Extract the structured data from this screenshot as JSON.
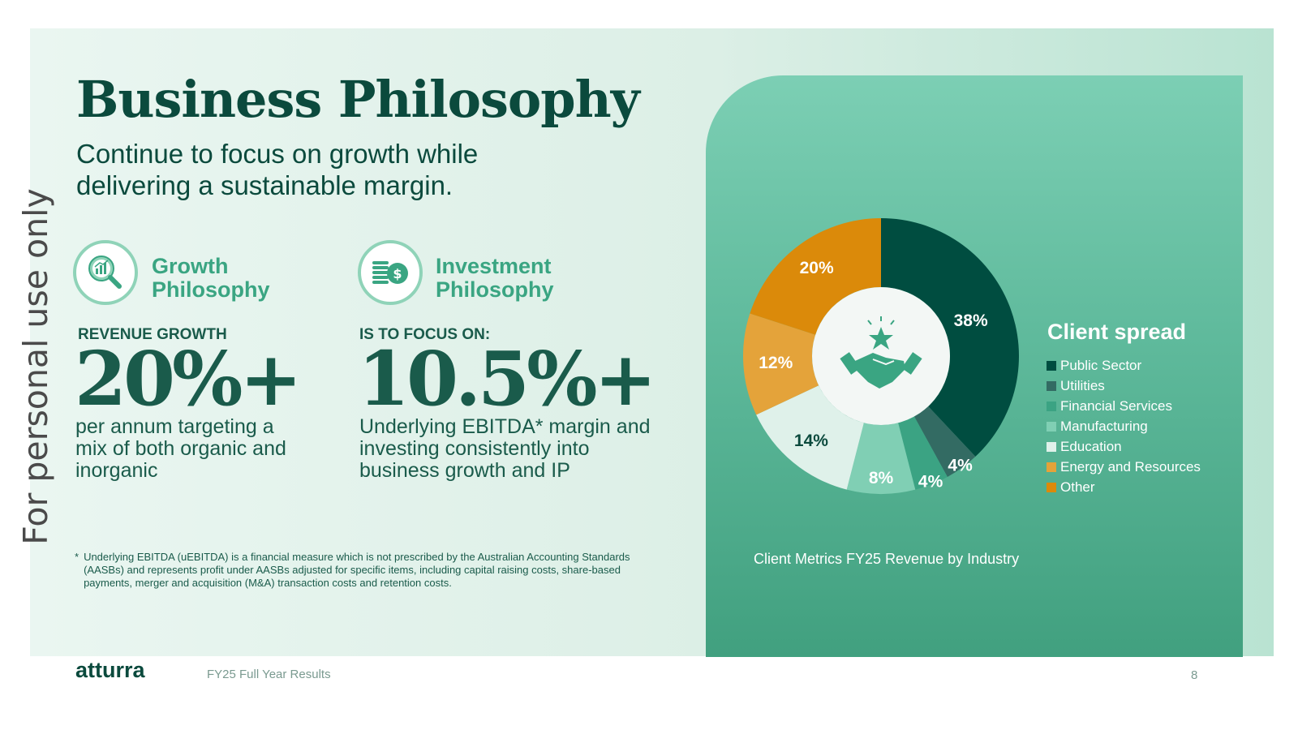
{
  "watermark": "For personal use only",
  "title": "Business Philosophy",
  "subtitle": "Continue to focus on growth while delivering a sustainable margin.",
  "growth": {
    "heading_line1": "Growth",
    "heading_line2": "Philosophy",
    "label": "REVENUE GROWTH",
    "value": "20%+",
    "desc": "per annum targeting a mix of both organic and inorganic",
    "icon": "magnifier-chart-icon"
  },
  "investment": {
    "heading_line1": "Investment",
    "heading_line2": "Philosophy",
    "label": "IS TO FOCUS ON:",
    "value": "10.5%+",
    "desc": "Underlying EBITDA* margin and investing consistently into business growth and IP",
    "icon": "coins-dollar-icon"
  },
  "footnote": {
    "marker": "*",
    "text": "Underlying EBITDA (uEBITDA) is a financial measure which is not prescribed by the Australian Accounting Standards (AASBs) and represents profit under AASBs adjusted for specific items, including capital raising costs, share-based payments, merger and acquisition (M&A) transaction costs and retention costs."
  },
  "chart_data": {
    "type": "pie",
    "donut": true,
    "title": "Client spread",
    "caption": "Client Metrics FY25 Revenue by Industry",
    "center_icon": "handshake-star-icon",
    "legend_position": "right",
    "categories": [
      "Public Sector",
      "Utilities",
      "Financial Services",
      "Manufacturing",
      "Education",
      "Energy and Resources",
      "Other"
    ],
    "values": [
      38,
      4,
      4,
      8,
      14,
      12,
      20
    ],
    "labels": [
      "38%",
      "4%",
      "4%",
      "8%",
      "14%",
      "12%",
      "20%"
    ],
    "colors": [
      "#004d40",
      "#336b63",
      "#3ba383",
      "#80cfb4",
      "#dff1ea",
      "#e4a33a",
      "#db8a0a"
    ]
  },
  "footer": {
    "logo": "atturra",
    "text": "FY25 Full Year Results",
    "page": "8"
  }
}
